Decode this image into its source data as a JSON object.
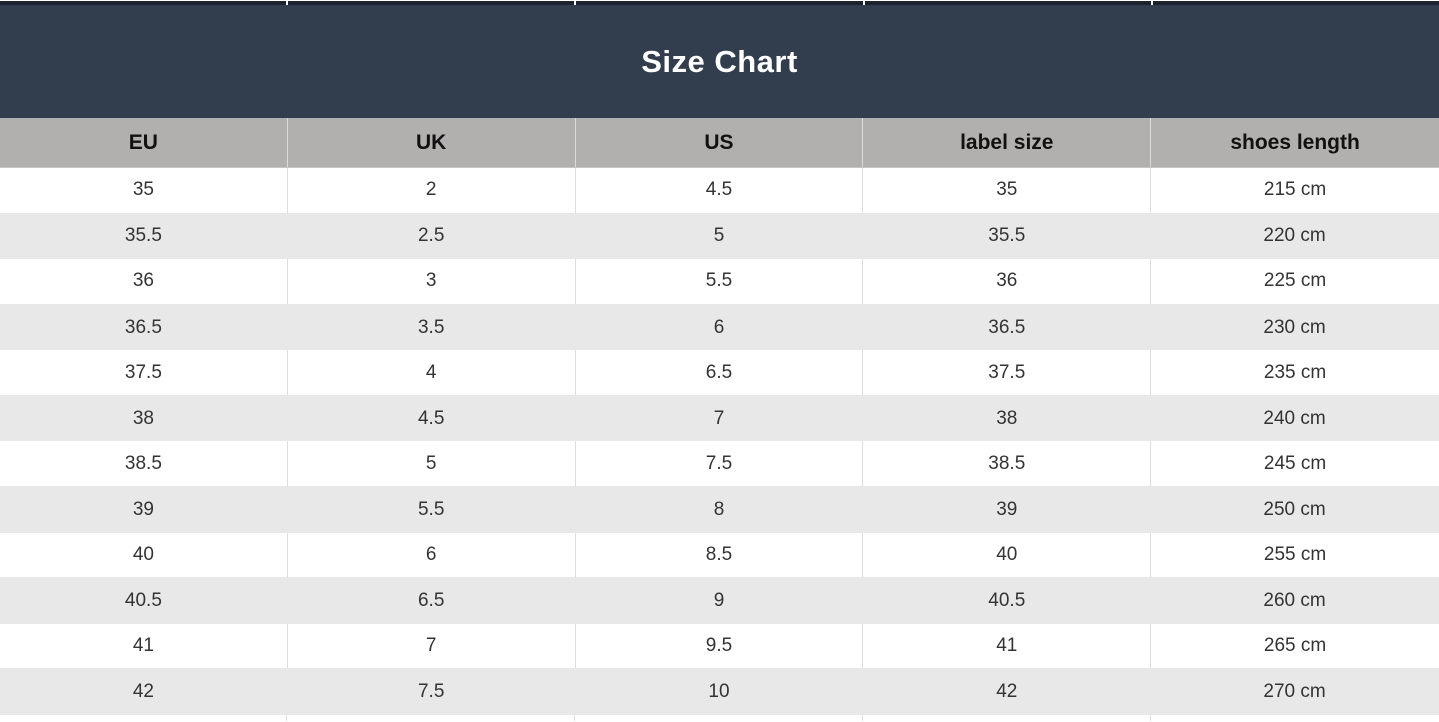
{
  "title": "Size Chart",
  "colors": {
    "slate_header_bg": "#323d4e",
    "top_strip": "#1d242f",
    "column_header_bg": "#b2b0ae",
    "row_alt_bg": "#e9e8e8",
    "row_bg": "#ffffff",
    "title_color": "#ffffff",
    "cell_text": "#333333"
  },
  "chart_data": {
    "type": "table",
    "title": "Size Chart",
    "columns": [
      "EU",
      "UK",
      "US",
      "label size",
      "shoes length"
    ],
    "rows": [
      [
        "35",
        "2",
        "4.5",
        "35",
        "215 cm"
      ],
      [
        "35.5",
        "2.5",
        "5",
        "35.5",
        "220 cm"
      ],
      [
        "36",
        "3",
        "5.5",
        "36",
        "225 cm"
      ],
      [
        "36.5",
        "3.5",
        "6",
        "36.5",
        "230 cm"
      ],
      [
        "37.5",
        "4",
        "6.5",
        "37.5",
        "235 cm"
      ],
      [
        "38",
        "4.5",
        "7",
        "38",
        "240 cm"
      ],
      [
        "38.5",
        "5",
        "7.5",
        "38.5",
        "245 cm"
      ],
      [
        "39",
        "5.5",
        "8",
        "39",
        "250 cm"
      ],
      [
        "40",
        "6",
        "8.5",
        "40",
        "255 cm"
      ],
      [
        "40.5",
        "6.5",
        "9",
        "40.5",
        "260 cm"
      ],
      [
        "41",
        "7",
        "9.5",
        "41",
        "265 cm"
      ],
      [
        "42",
        "7.5",
        "10",
        "42",
        "270 cm"
      ]
    ]
  }
}
